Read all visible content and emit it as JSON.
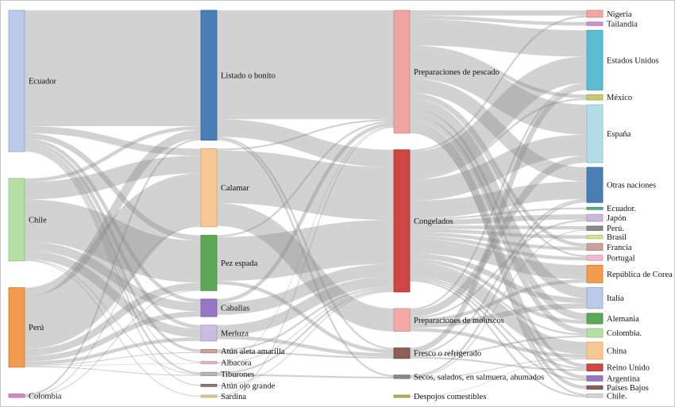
{
  "diagram": {
    "type": "sankey",
    "columns": [
      {
        "nodes": [
          {
            "id": "ec",
            "label": "Ecuador",
            "color": "#b9cbe9",
            "stroke": "#8fa6cf"
          },
          {
            "id": "cl",
            "label": "Chile",
            "color": "#b5dfa5",
            "stroke": "#8cc07a"
          },
          {
            "id": "pe",
            "label": "Perú",
            "color": "#f29a4e",
            "stroke": "#d07a30"
          },
          {
            "id": "co",
            "label": "Colombia",
            "color": "#d786c3",
            "stroke": "#b56aa3"
          }
        ]
      },
      {
        "nodes": [
          {
            "id": "li",
            "label": "Listado o bonito",
            "color": "#4a7fb6",
            "stroke": "#2f6399"
          },
          {
            "id": "ca",
            "label": "Calamar",
            "color": "#f7c894",
            "stroke": "#d8a46e"
          },
          {
            "id": "pz",
            "label": "Pez espada",
            "color": "#5ca857",
            "stroke": "#3f8a3b"
          },
          {
            "id": "cb",
            "label": "Caballas",
            "color": "#9777c5",
            "stroke": "#7859a8"
          },
          {
            "id": "me",
            "label": "Merluza",
            "color": "#cbbde2",
            "stroke": "#a897c6"
          },
          {
            "id": "aa",
            "label": "Atún aleta amarilla",
            "color": "#c9a39a",
            "stroke": "#a9857c"
          },
          {
            "id": "al",
            "label": "Albacora",
            "color": "#e8b2c9",
            "stroke": "#c994ab"
          },
          {
            "id": "ti",
            "label": "Tiburones",
            "color": "#b8b8b8",
            "stroke": "#9a9a9a"
          },
          {
            "id": "ao",
            "label": "Atún ojo grande",
            "color": "#8f7a70",
            "stroke": "#705e55"
          },
          {
            "id": "sa",
            "label": "Sardina",
            "color": "#d0cf9a",
            "stroke": "#b0af7a"
          }
        ]
      },
      {
        "nodes": [
          {
            "id": "pp",
            "label": "Preparaciones de pescado",
            "color": "#f0a4a0",
            "stroke": "#d48480"
          },
          {
            "id": "cg",
            "label": "Congelados",
            "color": "#cd4743",
            "stroke": "#a82e2b"
          },
          {
            "id": "pm",
            "label": "Preparaciones de moluscos",
            "color": "#f4aaa6",
            "stroke": "#d68a86"
          },
          {
            "id": "fr",
            "label": "Fresco o refrigerado",
            "color": "#8c5f58",
            "stroke": "#6d443e"
          },
          {
            "id": "se",
            "label": "Secos, salados, en salmuera, ahumados",
            "color": "#8a8a8a",
            "stroke": "#6a6a6a"
          },
          {
            "id": "de",
            "label": "Despojos comestibles",
            "color": "#b8ad55",
            "stroke": "#978d3a"
          }
        ]
      },
      {
        "nodes": [
          {
            "id": "ng",
            "label": "Nigeria",
            "color": "#f2a7a3",
            "stroke": "#d08783"
          },
          {
            "id": "ta",
            "label": "Tailandia",
            "color": "#d38fce",
            "stroke": "#b070ab"
          },
          {
            "id": "eu",
            "label": "Estados Unidos",
            "color": "#5bbdd2",
            "stroke": "#3a9db2"
          },
          {
            "id": "mx",
            "label": "México",
            "color": "#c9c86c",
            "stroke": "#a8a74e"
          },
          {
            "id": "es",
            "label": "España",
            "color": "#b3dde6",
            "stroke": "#8fbcc6"
          },
          {
            "id": "on",
            "label": "Otras naciones",
            "color": "#4a7fb6",
            "stroke": "#2f6399"
          },
          {
            "id": "ecd",
            "label": "Ecuador.",
            "color": "#5aaa8f",
            "stroke": "#3e8a70"
          },
          {
            "id": "ja",
            "label": "Japón",
            "color": "#c7b8dc",
            "stroke": "#a696bf"
          },
          {
            "id": "pr",
            "label": "Perú.",
            "color": "#8a8a8a",
            "stroke": "#6a6a6a"
          },
          {
            "id": "br",
            "label": "Brasil",
            "color": "#d9dc9a",
            "stroke": "#b8bb78"
          },
          {
            "id": "fa",
            "label": "Francia",
            "color": "#c7a39b",
            "stroke": "#a7837b"
          },
          {
            "id": "po",
            "label": "Portugal",
            "color": "#f2b8cf",
            "stroke": "#d498b0"
          },
          {
            "id": "rc",
            "label": "República de Corea",
            "color": "#f29a4e",
            "stroke": "#d07a30"
          },
          {
            "id": "it",
            "label": "Italia",
            "color": "#b9cbe9",
            "stroke": "#8fa6cf"
          },
          {
            "id": "am",
            "label": "Alemania",
            "color": "#5ca857",
            "stroke": "#3f8a3b"
          },
          {
            "id": "cd",
            "label": "Colombia.",
            "color": "#b5dfa5",
            "stroke": "#8cc07a"
          },
          {
            "id": "ch",
            "label": "China",
            "color": "#f7c894",
            "stroke": "#d8a46e"
          },
          {
            "id": "ru",
            "label": "Reino Unido",
            "color": "#cd4743",
            "stroke": "#a82e2b"
          },
          {
            "id": "ar",
            "label": "Argentina",
            "color": "#9777c5",
            "stroke": "#7859a8"
          },
          {
            "id": "pb",
            "label": "Países Bajos",
            "color": "#8c5f58",
            "stroke": "#6d443e"
          },
          {
            "id": "chd",
            "label": "Chile.",
            "color": "#d6d6d6",
            "stroke": "#b0b0b0"
          }
        ]
      }
    ],
    "links": [
      {
        "source": "ec",
        "target": "li",
        "value": 66
      },
      {
        "source": "ec",
        "target": "ca",
        "value": 4
      },
      {
        "source": "ec",
        "target": "pz",
        "value": 3
      },
      {
        "source": "ec",
        "target": "cb",
        "value": 2
      },
      {
        "source": "ec",
        "target": "me",
        "value": 2
      },
      {
        "source": "ec",
        "target": "aa",
        "value": 1.5
      },
      {
        "source": "ec",
        "target": "al",
        "value": 0.5
      },
      {
        "source": "ec",
        "target": "ti",
        "value": 1
      },
      {
        "source": "ec",
        "target": "ao",
        "value": 0.5
      },
      {
        "source": "cl",
        "target": "ca",
        "value": 10
      },
      {
        "source": "cl",
        "target": "pz",
        "value": 24
      },
      {
        "source": "cl",
        "target": "cb",
        "value": 5
      },
      {
        "source": "cl",
        "target": "me",
        "value": 5
      },
      {
        "source": "cl",
        "target": "li",
        "value": 2
      },
      {
        "source": "cl",
        "target": "ti",
        "value": 0.5
      },
      {
        "source": "cl",
        "target": "sa",
        "value": 0.5
      },
      {
        "source": "pe",
        "target": "ca",
        "value": 30
      },
      {
        "source": "pe",
        "target": "li",
        "value": 5
      },
      {
        "source": "pe",
        "target": "pz",
        "value": 4
      },
      {
        "source": "pe",
        "target": "cb",
        "value": 3
      },
      {
        "source": "pe",
        "target": "me",
        "value": 2
      },
      {
        "source": "pe",
        "target": "aa",
        "value": 0.5
      },
      {
        "source": "pe",
        "target": "ti",
        "value": 0.5
      },
      {
        "source": "pe",
        "target": "al",
        "value": 0.3
      },
      {
        "source": "co",
        "target": "li",
        "value": 1
      },
      {
        "source": "co",
        "target": "ca",
        "value": 0.5
      },
      {
        "source": "co",
        "target": "pz",
        "value": 0.5
      },
      {
        "source": "li",
        "target": "pp",
        "value": 62
      },
      {
        "source": "li",
        "target": "cg",
        "value": 10
      },
      {
        "source": "li",
        "target": "fr",
        "value": 1
      },
      {
        "source": "li",
        "target": "se",
        "value": 1
      },
      {
        "source": "ca",
        "target": "cg",
        "value": 30
      },
      {
        "source": "ca",
        "target": "pm",
        "value": 13
      },
      {
        "source": "ca",
        "target": "pp",
        "value": 1
      },
      {
        "source": "pz",
        "target": "cg",
        "value": 25
      },
      {
        "source": "pz",
        "target": "fr",
        "value": 2
      },
      {
        "source": "pz",
        "target": "pp",
        "value": 1
      },
      {
        "source": "cb",
        "target": "cg",
        "value": 7
      },
      {
        "source": "cb",
        "target": "pp",
        "value": 2
      },
      {
        "source": "me",
        "target": "cg",
        "value": 6
      },
      {
        "source": "me",
        "target": "fr",
        "value": 2
      },
      {
        "source": "aa",
        "target": "cg",
        "value": 1
      },
      {
        "source": "aa",
        "target": "fr",
        "value": 1
      },
      {
        "source": "al",
        "target": "cg",
        "value": 0.5
      },
      {
        "source": "al",
        "target": "pp",
        "value": 0.3
      },
      {
        "source": "ti",
        "target": "cg",
        "value": 1
      },
      {
        "source": "ti",
        "target": "se",
        "value": 1
      },
      {
        "source": "ao",
        "target": "cg",
        "value": 0.5
      },
      {
        "source": "sa",
        "target": "pp",
        "value": 0.5
      },
      {
        "source": "pp",
        "target": "eu",
        "value": 15
      },
      {
        "source": "pp",
        "target": "es",
        "value": 17
      },
      {
        "source": "pp",
        "target": "ng",
        "value": 3
      },
      {
        "source": "pp",
        "target": "mx",
        "value": 2
      },
      {
        "source": "pp",
        "target": "on",
        "value": 8
      },
      {
        "source": "pp",
        "target": "ta",
        "value": 2
      },
      {
        "source": "pp",
        "target": "it",
        "value": 6
      },
      {
        "source": "pp",
        "target": "am",
        "value": 4
      },
      {
        "source": "pp",
        "target": "cd",
        "value": 3
      },
      {
        "source": "pp",
        "target": "fa",
        "value": 2
      },
      {
        "source": "pp",
        "target": "pb",
        "value": 2
      },
      {
        "source": "pp",
        "target": "ar",
        "value": 2
      },
      {
        "source": "pp",
        "target": "ru",
        "value": 2
      },
      {
        "source": "pp",
        "target": "chd",
        "value": 1
      },
      {
        "source": "pp",
        "target": "po",
        "value": 1
      },
      {
        "source": "cg",
        "target": "eu",
        "value": 15
      },
      {
        "source": "cg",
        "target": "es",
        "value": 12
      },
      {
        "source": "cg",
        "target": "on",
        "value": 10
      },
      {
        "source": "cg",
        "target": "ch",
        "value": 7
      },
      {
        "source": "cg",
        "target": "rc",
        "value": 8
      },
      {
        "source": "cg",
        "target": "it",
        "value": 3
      },
      {
        "source": "cg",
        "target": "ja",
        "value": 3
      },
      {
        "source": "cg",
        "target": "am",
        "value": 2
      },
      {
        "source": "cg",
        "target": "br",
        "value": 2
      },
      {
        "source": "cg",
        "target": "fa",
        "value": 2
      },
      {
        "source": "cg",
        "target": "po",
        "value": 2
      },
      {
        "source": "cg",
        "target": "pr",
        "value": 2
      },
      {
        "source": "cg",
        "target": "ecd",
        "value": 1
      },
      {
        "source": "cg",
        "target": "ar",
        "value": 1
      },
      {
        "source": "cg",
        "target": "ru",
        "value": 1
      },
      {
        "source": "cg",
        "target": "ng",
        "value": 1
      },
      {
        "source": "cg",
        "target": "mx",
        "value": 1
      },
      {
        "source": "cg",
        "target": "chd",
        "value": 1
      },
      {
        "source": "cg",
        "target": "cd",
        "value": 1
      },
      {
        "source": "pm",
        "target": "es",
        "value": 4
      },
      {
        "source": "pm",
        "target": "it",
        "value": 3
      },
      {
        "source": "pm",
        "target": "ch",
        "value": 2
      },
      {
        "source": "pm",
        "target": "rc",
        "value": 2
      },
      {
        "source": "pm",
        "target": "ja",
        "value": 1
      },
      {
        "source": "pm",
        "target": "eu",
        "value": 1
      },
      {
        "source": "fr",
        "target": "eu",
        "value": 3
      },
      {
        "source": "fr",
        "target": "on",
        "value": 1
      },
      {
        "source": "fr",
        "target": "cd",
        "value": 1
      },
      {
        "source": "fr",
        "target": "ru",
        "value": 1
      },
      {
        "source": "se",
        "target": "on",
        "value": 1
      },
      {
        "source": "se",
        "target": "pr",
        "value": 0.5
      },
      {
        "source": "se",
        "target": "ch",
        "value": 0.5
      },
      {
        "source": "de",
        "target": "ch",
        "value": 0.3
      }
    ]
  }
}
